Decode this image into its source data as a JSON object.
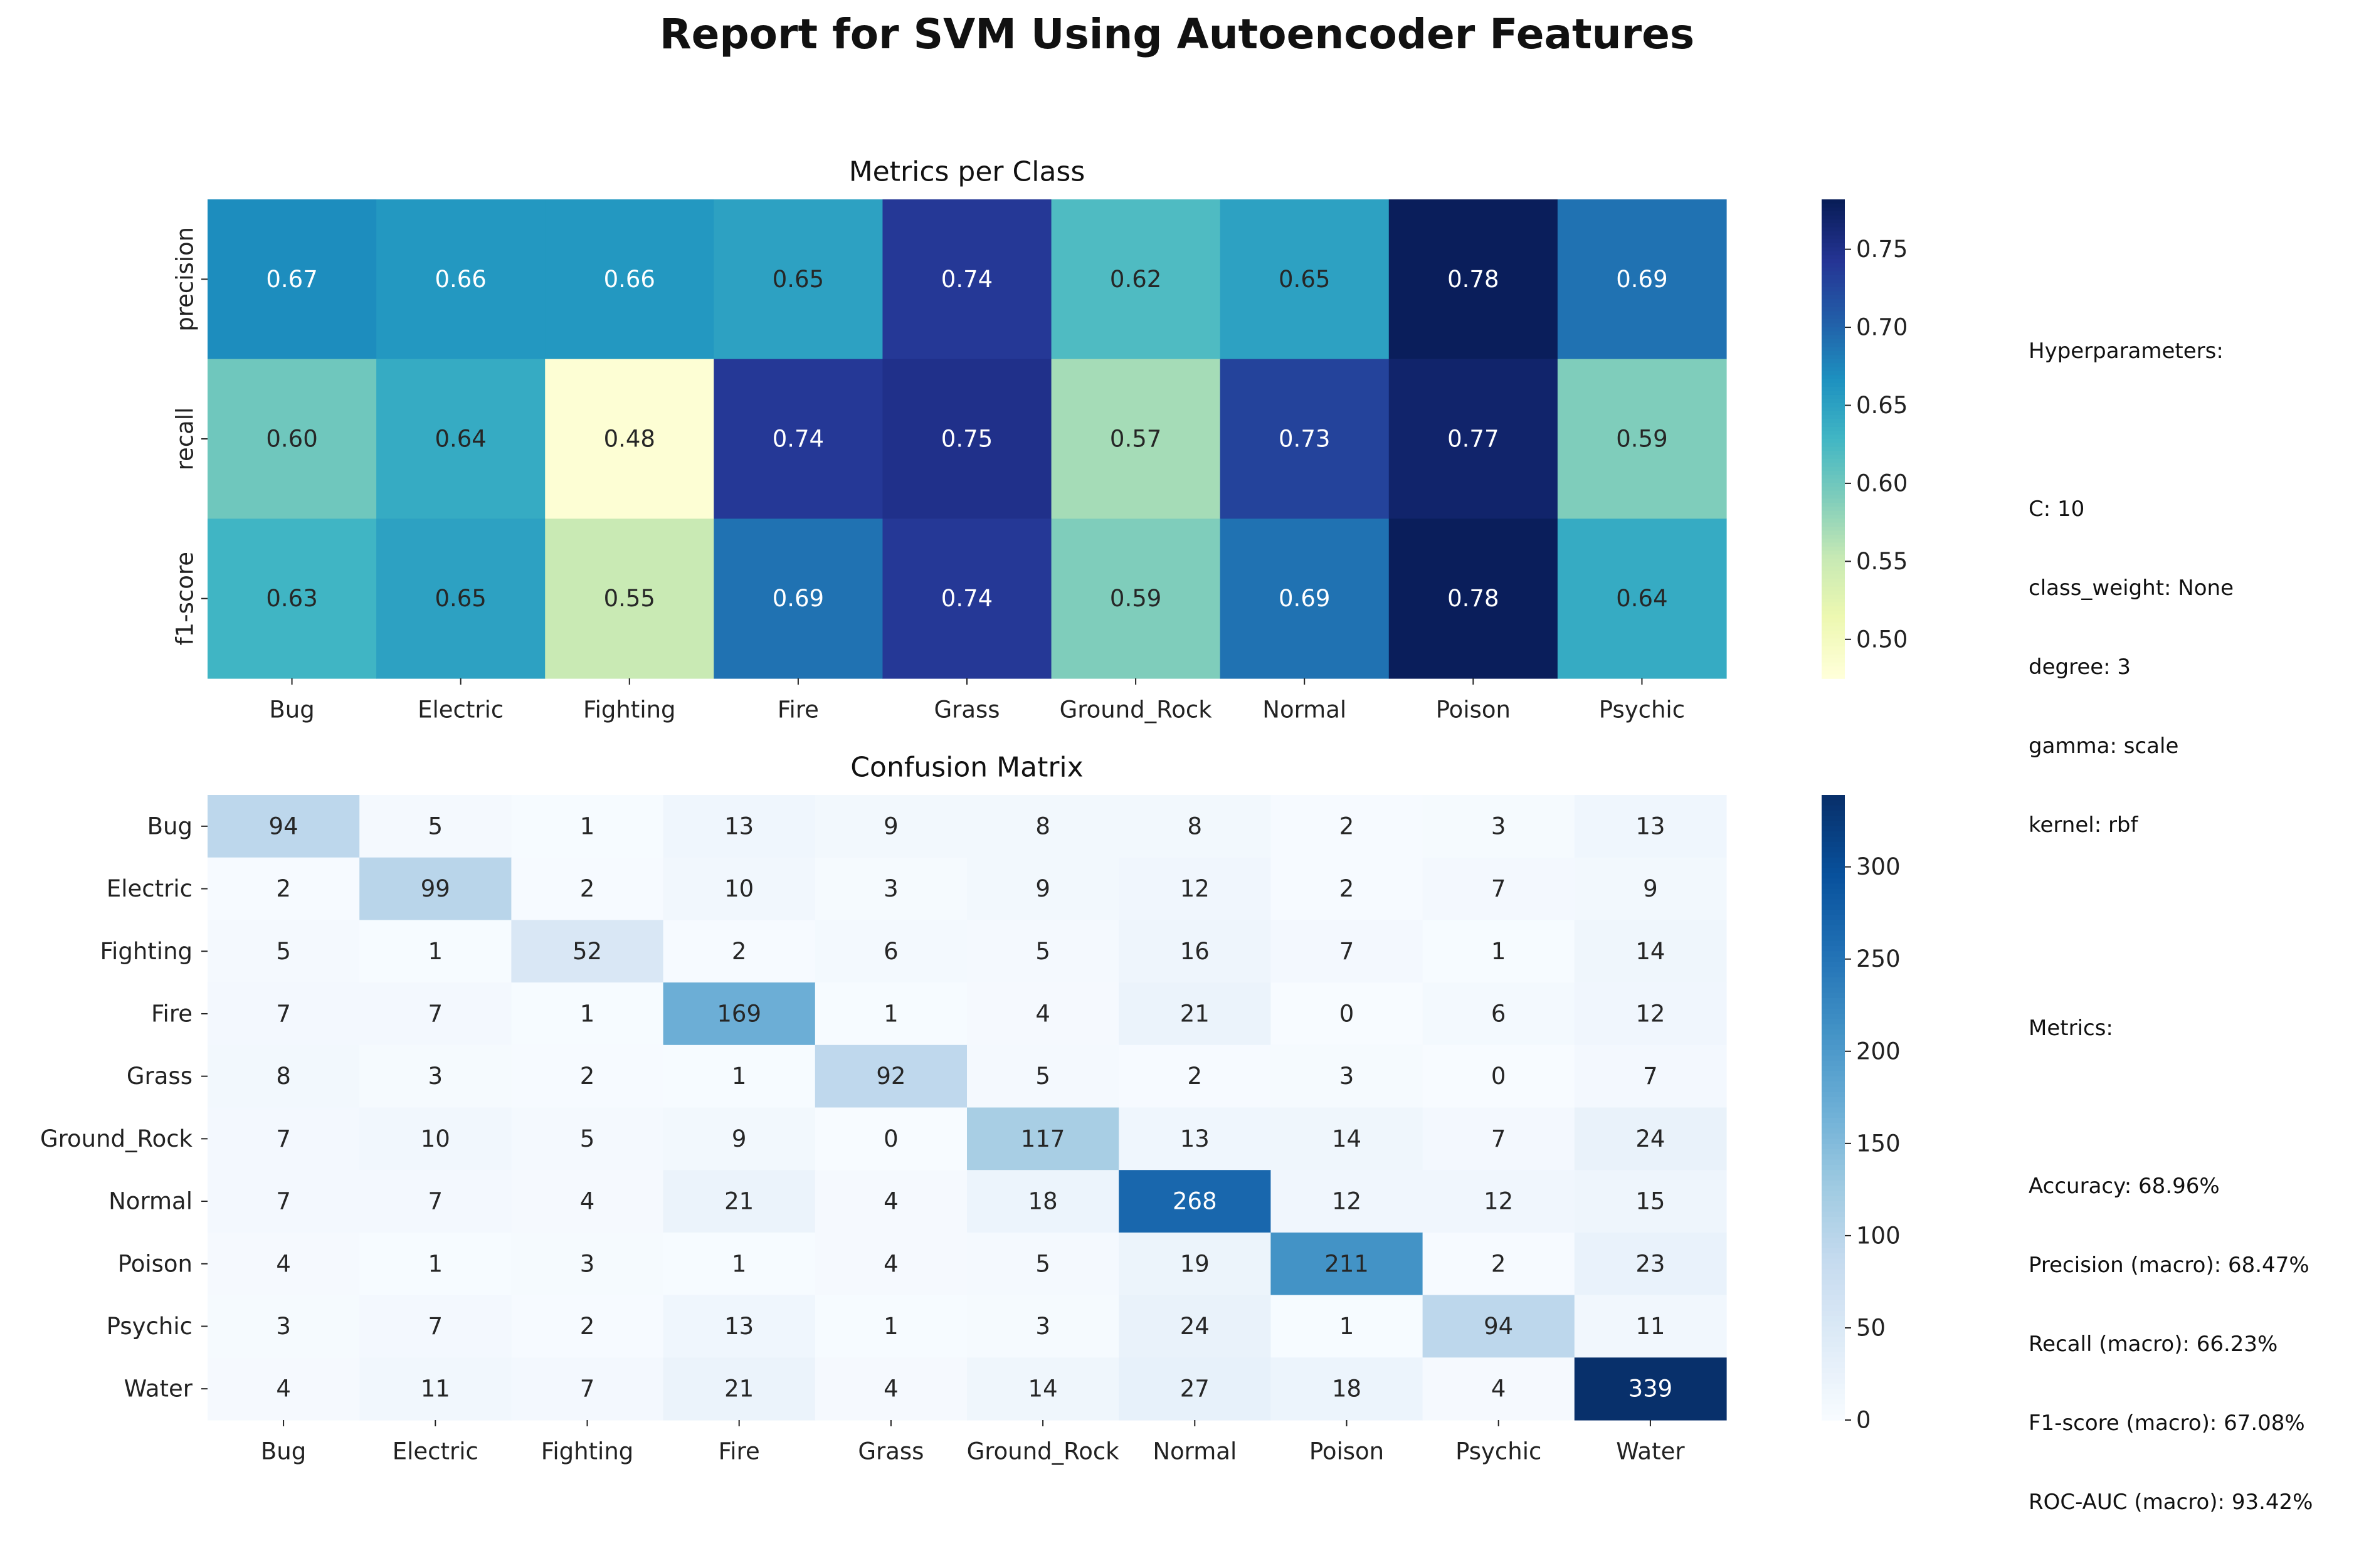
{
  "suptitle": "Report for SVM Using Autoencoder Features",
  "hyperparameters": {
    "heading": "Hyperparameters:",
    "lines": [
      "C: 10",
      "class_weight: None",
      "degree: 3",
      "gamma: scale",
      "kernel: rbf"
    ]
  },
  "metrics_summary": {
    "heading": "Metrics:",
    "lines": [
      "Accuracy: 68.96%",
      "Precision (macro): 68.47%",
      "Recall (macro): 66.23%",
      "F1-score (macro): 67.08%",
      "ROC-AUC (macro): 93.42%"
    ]
  },
  "chart_data": [
    {
      "type": "heatmap",
      "title": "Metrics per Class",
      "colormap": "YlGnBu",
      "columns": [
        "Bug",
        "Electric",
        "Fighting",
        "Fire",
        "Grass",
        "Ground_Rock",
        "Normal",
        "Poison",
        "Psychic"
      ],
      "rows": [
        "precision",
        "recall",
        "f1-score"
      ],
      "values": [
        [
          0.67,
          0.66,
          0.66,
          0.65,
          0.74,
          0.62,
          0.65,
          0.78,
          0.69
        ],
        [
          0.6,
          0.64,
          0.48,
          0.74,
          0.75,
          0.57,
          0.73,
          0.77,
          0.59
        ],
        [
          0.63,
          0.65,
          0.55,
          0.69,
          0.74,
          0.59,
          0.69,
          0.78,
          0.64
        ]
      ],
      "color_range": [
        0.475,
        0.782
      ],
      "colorbar_ticks": [
        "0.50",
        "0.55",
        "0.60",
        "0.65",
        "0.70",
        "0.75"
      ],
      "colorbar_tick_values": [
        0.5,
        0.55,
        0.6,
        0.65,
        0.7,
        0.75
      ]
    },
    {
      "type": "heatmap",
      "title": "Confusion Matrix",
      "colormap": "Blues",
      "columns": [
        "Bug",
        "Electric",
        "Fighting",
        "Fire",
        "Grass",
        "Ground_Rock",
        "Normal",
        "Poison",
        "Psychic",
        "Water"
      ],
      "rows": [
        "Bug",
        "Electric",
        "Fighting",
        "Fire",
        "Grass",
        "Ground_Rock",
        "Normal",
        "Poison",
        "Psychic",
        "Water"
      ],
      "values": [
        [
          94,
          5,
          1,
          13,
          9,
          8,
          8,
          2,
          3,
          13
        ],
        [
          2,
          99,
          2,
          10,
          3,
          9,
          12,
          2,
          7,
          9
        ],
        [
          5,
          1,
          52,
          2,
          6,
          5,
          16,
          7,
          1,
          14
        ],
        [
          7,
          7,
          1,
          169,
          1,
          4,
          21,
          0,
          6,
          12
        ],
        [
          8,
          3,
          2,
          1,
          92,
          5,
          2,
          3,
          0,
          7
        ],
        [
          7,
          10,
          5,
          9,
          0,
          117,
          13,
          14,
          7,
          24
        ],
        [
          7,
          7,
          4,
          21,
          4,
          18,
          268,
          12,
          12,
          15
        ],
        [
          4,
          1,
          3,
          1,
          4,
          5,
          19,
          211,
          2,
          23
        ],
        [
          3,
          7,
          2,
          13,
          1,
          3,
          24,
          1,
          94,
          11
        ],
        [
          4,
          11,
          7,
          21,
          4,
          14,
          27,
          18,
          4,
          339
        ]
      ],
      "color_range": [
        0,
        339
      ],
      "colorbar_ticks": [
        "0",
        "50",
        "100",
        "150",
        "200",
        "250",
        "300"
      ],
      "colorbar_tick_values": [
        0,
        50,
        100,
        150,
        200,
        250,
        300
      ]
    }
  ]
}
